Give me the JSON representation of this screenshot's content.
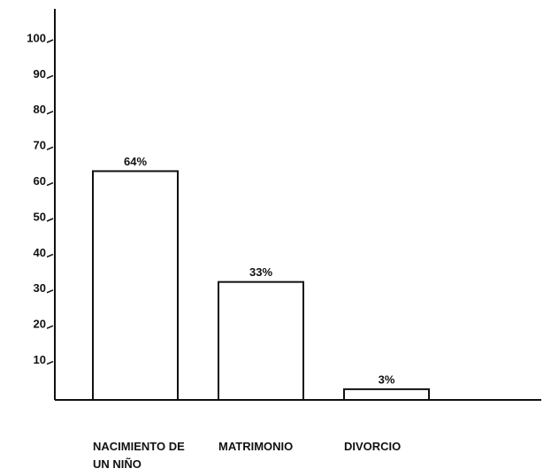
{
  "chart_data": {
    "type": "bar",
    "categories": [
      "NACIMIENTO DE UN NIÑO",
      "MATRIMONIO",
      "DIVORCIO"
    ],
    "values": [
      64,
      33,
      3
    ],
    "value_labels": [
      "64%",
      "33%",
      "3%"
    ],
    "color": "#ffffff",
    "ylim": [
      0,
      100
    ],
    "yticks": [
      10,
      20,
      30,
      40,
      50,
      60,
      70,
      80,
      90,
      100
    ]
  }
}
